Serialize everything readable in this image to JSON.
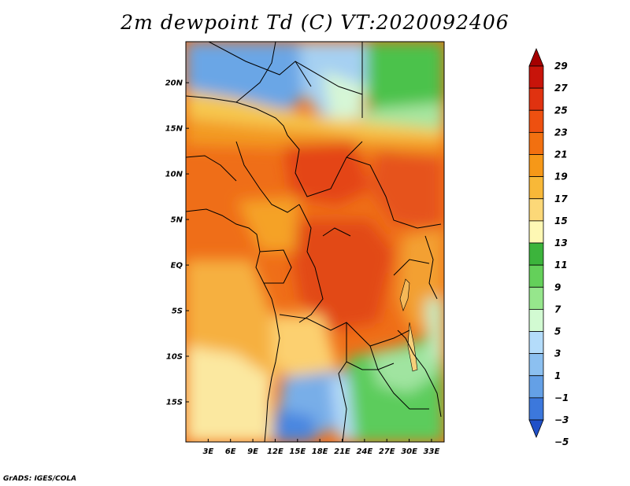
{
  "title": "2m dewpoint Td (C) VT:2020092406",
  "footer": "GrADS: IGES/COLA",
  "map": {
    "variable": "2m dewpoint",
    "units": "C",
    "valid_time": "2020092406",
    "lat_labels": [
      "20N",
      "15N",
      "10N",
      "5N",
      "EQ",
      "5S",
      "10S",
      "15S"
    ],
    "lat_values": [
      20,
      15,
      10,
      5,
      0,
      -5,
      -10,
      -15
    ],
    "lon_labels": [
      "3E",
      "6E",
      "9E",
      "12E",
      "15E",
      "18E",
      "21E",
      "24E",
      "27E",
      "30E",
      "33E"
    ],
    "lon_values": [
      3,
      6,
      9,
      12,
      15,
      18,
      21,
      24,
      27,
      30,
      33
    ]
  },
  "colorbar": {
    "labels": [
      "29",
      "27",
      "25",
      "23",
      "21",
      "19",
      "17",
      "15",
      "13",
      "11",
      "9",
      "7",
      "5",
      "3",
      "1",
      "−1",
      "−3",
      "−5"
    ],
    "colors": [
      "#a50000",
      "#c8140a",
      "#e03210",
      "#ee5010",
      "#f27010",
      "#f69818",
      "#f8b838",
      "#fcd878",
      "#fef8b4",
      "#3cb43c",
      "#64d05a",
      "#96e68c",
      "#d2fad2",
      "#b4dcfa",
      "#8cc0f0",
      "#64a0e6",
      "#3c78dc",
      "#2050c8"
    ]
  }
}
